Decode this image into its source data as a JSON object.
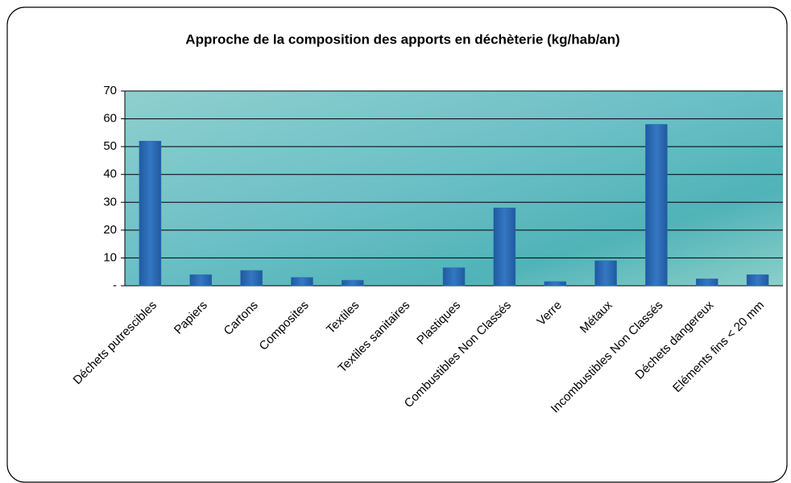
{
  "chart_data": {
    "type": "bar",
    "title": "Approche de la composition des apports en déchèterie (kg/hab/an)",
    "categories": [
      "Déchets putrescibles",
      "Papiers",
      "Cartons",
      "Composites",
      "Textiles",
      "Textiles sanitaires",
      "Plastiques",
      "Combustibles Non Classés",
      "Verre",
      "Métaux",
      "Incombustibles Non Classés",
      "Déchets dangereux",
      "Eléments fins < 20 mm"
    ],
    "values": [
      52,
      4,
      5.5,
      3,
      2,
      0,
      6.5,
      28,
      1.5,
      9,
      58,
      2.5,
      4
    ],
    "color": "#2b6cb6",
    "ylim": [
      0,
      70
    ],
    "yticks": [
      {
        "value": 0,
        "label": "-"
      },
      10,
      20,
      30,
      40,
      50,
      60,
      70
    ],
    "grid": true
  }
}
